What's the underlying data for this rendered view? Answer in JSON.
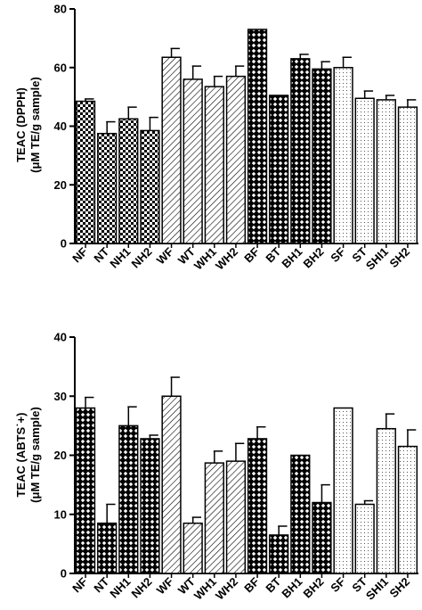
{
  "chart_data": [
    {
      "type": "bar",
      "ylabel_line1": "TEAC (DPPH)",
      "ylabel_line2": "(μM TE/g sample)",
      "ylim": [
        0,
        80
      ],
      "yticks": [
        0,
        20,
        40,
        60,
        80
      ],
      "grid": false,
      "categories": [
        "NF",
        "NT",
        "NH1",
        "NH2",
        "WF",
        "WT",
        "WH1",
        "WH2",
        "BF",
        "BT",
        "BH1",
        "BH2",
        "SF",
        "ST",
        "SHI1",
        "SH2"
      ],
      "values": [
        48.5,
        37.5,
        42.5,
        38.5,
        63.5,
        56,
        53.5,
        57,
        73,
        50.5,
        63,
        59.5,
        60,
        49.5,
        49,
        46.5
      ],
      "errors": [
        0.8,
        4,
        4,
        4.5,
        3,
        4.5,
        3.5,
        3.5,
        0,
        0,
        1.5,
        2.5,
        3.5,
        2.5,
        1.5,
        2.5
      ],
      "patterns": [
        "checker",
        "checker",
        "checker",
        "checker",
        "hatch",
        "hatch",
        "hatch",
        "hatch",
        "diamond",
        "diamond",
        "diamond",
        "diamond",
        "dots",
        "dots",
        "dots",
        "dots"
      ]
    },
    {
      "type": "bar",
      "ylabel_line1": "TEAC (ABTS˙+)",
      "ylabel_line2": "(μM TE/g sample)",
      "ylim": [
        0,
        40
      ],
      "yticks": [
        0,
        10,
        20,
        30,
        40
      ],
      "grid": false,
      "categories": [
        "NF",
        "NT",
        "NH1",
        "NH2",
        "WF",
        "WT",
        "WH1",
        "WH2",
        "BF",
        "BT",
        "BH1",
        "BH2",
        "SF",
        "ST",
        "SHI1",
        "SH2"
      ],
      "values": [
        28,
        8.5,
        25,
        22.8,
        30,
        8.5,
        18.7,
        19,
        22.8,
        6.5,
        20,
        12,
        28,
        11.7,
        24.5,
        21.5
      ],
      "errors": [
        1.8,
        3.2,
        3.2,
        0.6,
        3.2,
        1,
        2,
        3,
        2,
        1.5,
        0,
        3,
        0,
        0.6,
        2.5,
        2.8
      ],
      "patterns": [
        "diamond",
        "diamond",
        "diamond",
        "diamond",
        "hatch",
        "hatch",
        "hatch",
        "hatch",
        "diamond",
        "diamond",
        "diamond",
        "diamond",
        "dots",
        "dots",
        "dots",
        "dots"
      ]
    }
  ]
}
